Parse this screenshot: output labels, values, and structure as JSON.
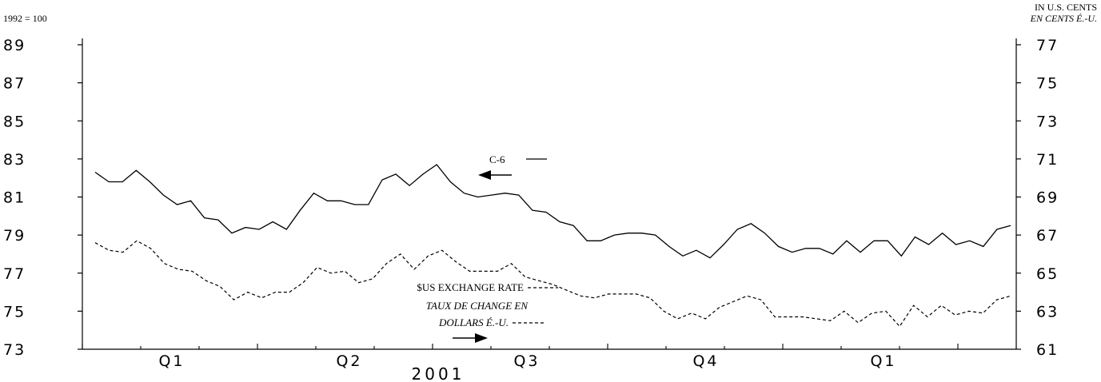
{
  "chart_data": {
    "type": "line",
    "left_axis": {
      "unit_label": "1992 = 100",
      "ylim": [
        73,
        89
      ],
      "ticks": [
        "89",
        "87",
        "85",
        "83",
        "81",
        "79",
        "77",
        "75",
        "73"
      ]
    },
    "right_axis": {
      "unit_label_en": "IN U.S. CENTS",
      "unit_label_fr": "EN CENTS É.-U.",
      "ylim": [
        61,
        77
      ],
      "ticks": [
        "77",
        "75",
        "73",
        "71",
        "69",
        "67",
        "65",
        "63",
        "61"
      ]
    },
    "x_axis": {
      "quarters": [
        "Q1",
        "Q2",
        "Q3",
        "Q4",
        "Q1"
      ],
      "year_label": "2001"
    },
    "series": [
      {
        "name": "C-6",
        "axis": "left",
        "style": "solid",
        "values": [
          82.3,
          81.8,
          81.8,
          82.4,
          81.8,
          81.1,
          80.6,
          80.8,
          79.9,
          79.8,
          79.1,
          79.4,
          79.3,
          79.7,
          79.3,
          80.3,
          81.2,
          80.8,
          80.8,
          80.6,
          80.6,
          81.9,
          82.2,
          81.6,
          82.2,
          82.7,
          81.8,
          81.2,
          81.0,
          81.1,
          81.2,
          81.1,
          80.3,
          80.2,
          79.7,
          79.5,
          78.7,
          78.7,
          79.0,
          79.1,
          79.1,
          79.0,
          78.4,
          77.9,
          78.2,
          77.8,
          78.5,
          79.3,
          79.6,
          79.1,
          78.4,
          78.1,
          78.3,
          78.3,
          78.0,
          78.7,
          78.1,
          78.7,
          78.7,
          77.9,
          78.9,
          78.5,
          79.1,
          78.5,
          78.7,
          78.4,
          79.3,
          79.5
        ]
      },
      {
        "name": "$US EXCHANGE RATE / TAUX DE CHANGE EN DOLLARS É.-U.",
        "axis": "right",
        "style": "dashed",
        "values": [
          66.6,
          66.2,
          66.1,
          66.7,
          66.3,
          65.5,
          65.2,
          65.1,
          64.6,
          64.3,
          63.6,
          64.0,
          63.7,
          64.0,
          64.0,
          64.5,
          65.3,
          65.0,
          65.1,
          64.5,
          64.7,
          65.5,
          66.0,
          65.2,
          65.9,
          66.2,
          65.6,
          65.1,
          65.1,
          65.1,
          65.5,
          64.8,
          64.6,
          64.4,
          64.1,
          63.8,
          63.7,
          63.9,
          63.9,
          63.9,
          63.7,
          63.0,
          62.6,
          62.9,
          62.6,
          63.2,
          63.5,
          63.8,
          63.6,
          62.7,
          62.7,
          62.7,
          62.6,
          62.5,
          63.0,
          62.4,
          62.9,
          63.0,
          62.2,
          63.3,
          62.7,
          63.3,
          62.8,
          63.0,
          62.9,
          63.6,
          63.8
        ]
      }
    ],
    "annotations": {
      "c6_label": "C-6",
      "fx_line1": "$US EXCHANGE RATE",
      "fx_line2": "TAUX DE CHANGE EN",
      "fx_line3": "DOLLARS É.-U."
    },
    "grid": false,
    "legend": "inline annotations"
  }
}
